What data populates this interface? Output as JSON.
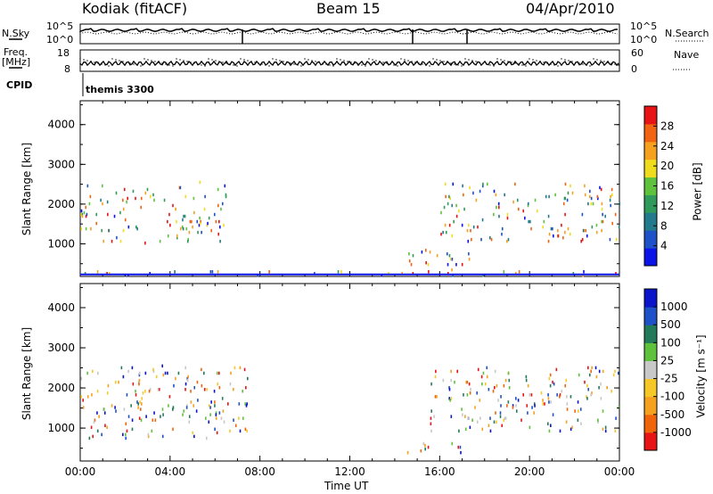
{
  "header": {
    "left": "Kodiak (fitACF)",
    "center": "Beam 15",
    "right": "04/Apr/2010"
  },
  "top_panels": {
    "nsky_label": "N.Sky",
    "nsearch_label": "N.Search",
    "freq_label_1": "Freq.",
    "freq_label_2": "[MHz]",
    "nave_label": "Nave",
    "cpid_label": "CPID",
    "cpid_value": "themis 3300",
    "noise_ticks_left": [
      "10^5",
      "10^0"
    ],
    "noise_ticks_right": [
      "10^5",
      "10^0"
    ],
    "freq_ticks": [
      "18",
      "8"
    ],
    "nave_ticks": [
      "60",
      "0"
    ]
  },
  "colors": {
    "power": [
      "#0a14e6",
      "#1e50c8",
      "#237a8c",
      "#2f9a5a",
      "#5ec23c",
      "#f0dc1e",
      "#f5a01e",
      "#f06414",
      "#e61414"
    ],
    "velocity": [
      "#e61414",
      "#f0640a",
      "#f5a01e",
      "#f5c828",
      "#c8c8c8",
      "#5ec23c",
      "#237a5a",
      "#1e50c8",
      "#0a14c8"
    ]
  },
  "chart_data": [
    {
      "type": "heatmap",
      "name": "power",
      "xlabel": "",
      "ylabel": "Slant Range [km]",
      "x_range": [
        "00:00",
        "24:00"
      ],
      "xlim": [
        0,
        24
      ],
      "ylim": [
        180,
        4600
      ],
      "y_ticks": [
        "1000",
        "2000",
        "3000",
        "4000"
      ],
      "colorbar": {
        "label": "Power [dB]",
        "ticks": [
          "4",
          "8",
          "12",
          "16",
          "20",
          "24",
          "28"
        ],
        "range": [
          0,
          32
        ]
      },
      "region_summary": [
        {
          "x": [
            0.0,
            6.5
          ],
          "y": [
            1000,
            2500
          ],
          "value": "mixed 4-28 dB, densest 1500-2200 km"
        },
        {
          "x": [
            14.5,
            17.5
          ],
          "y": [
            300,
            800
          ],
          "value": "4-8 dB"
        },
        {
          "x": [
            16.0,
            24.0
          ],
          "y": [
            1000,
            2500
          ],
          "value": "mixed 4-28 dB"
        },
        {
          "x": [
            0.0,
            24.0
          ],
          "y": [
            180,
            280
          ],
          "value": "4 dB, near-continuous"
        }
      ]
    },
    {
      "type": "heatmap",
      "name": "velocity",
      "xlabel": "Time UT",
      "ylabel": "Slant Range [km]",
      "x_range": [
        "00:00",
        "24:00"
      ],
      "xlim": [
        0,
        24
      ],
      "ylim": [
        180,
        4600
      ],
      "y_ticks": [
        "1000",
        "2000",
        "3000",
        "4000"
      ],
      "x_ticks": [
        "00:00",
        "04:00",
        "08:00",
        "12:00",
        "16:00",
        "20:00",
        "00:00"
      ],
      "colorbar": {
        "label": "Velocity [m s⁻¹]",
        "ticks": [
          "1000",
          "500",
          "100",
          "25",
          "-25",
          "-100",
          "-500",
          "-1000"
        ]
      },
      "region_summary": [
        {
          "x": [
            0.0,
            7.5
          ],
          "y": [
            700,
            2500
          ],
          "value": "mixed -1000 to 1000 m/s"
        },
        {
          "x": [
            14.5,
            17.0
          ],
          "y": [
            300,
            600
          ],
          "value": "-500 to 500 m/s"
        },
        {
          "x": [
            15.5,
            24.0
          ],
          "y": [
            900,
            2500
          ],
          "value": "mixed -1000 to 1000 m/s"
        }
      ]
    }
  ]
}
